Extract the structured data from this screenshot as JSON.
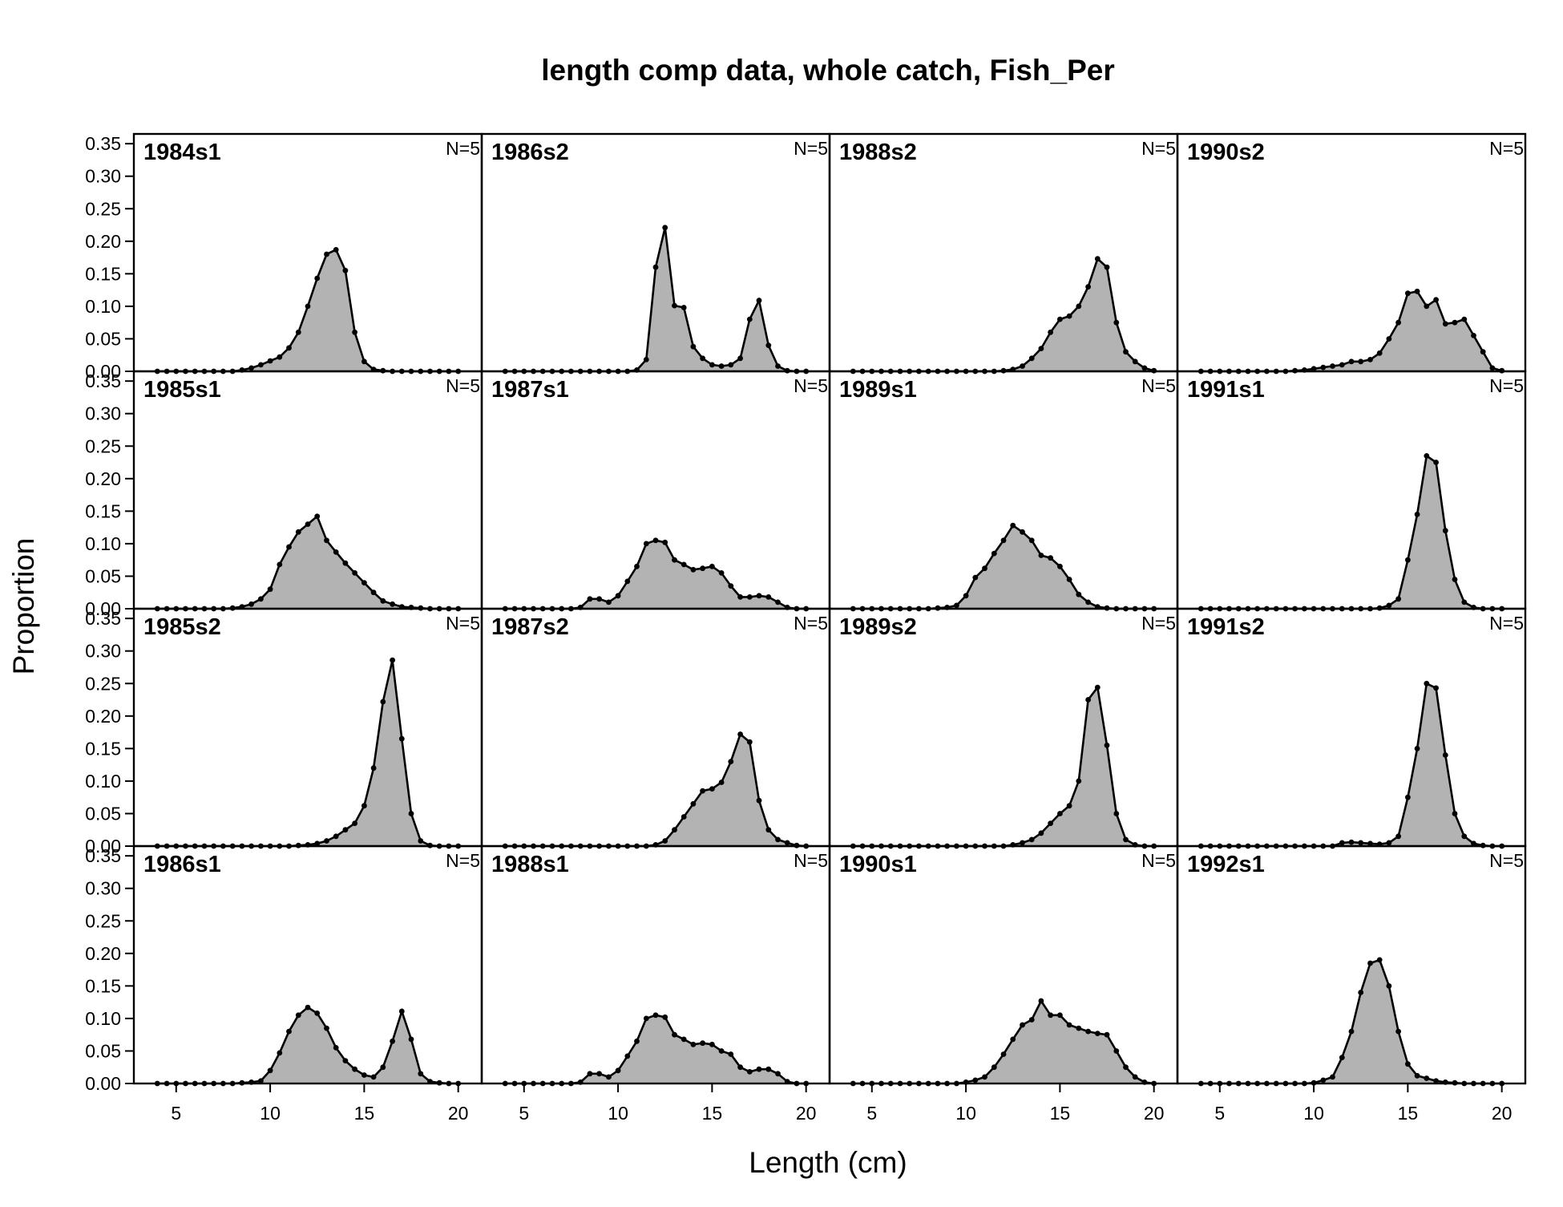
{
  "chart_data": {
    "type": "area",
    "title": "length comp data, whole catch, Fish_Per",
    "xlabel": "Length (cm)",
    "ylabel": "Proportion",
    "xlim": [
      2.75,
      21.25
    ],
    "ylim": [
      0,
      0.365
    ],
    "x_ticks": [
      5,
      10,
      15,
      20
    ],
    "x_tick_labels": [
      "5",
      "10",
      "15",
      "20"
    ],
    "y_ticks": [
      0,
      0.05,
      0.1,
      0.15,
      0.2,
      0.25,
      0.3,
      0.35
    ],
    "y_tick_labels": [
      "0.00",
      "0.05",
      "0.10",
      "0.15",
      "0.20",
      "0.25",
      "0.30",
      "0.35"
    ],
    "layout": "4 x 4 panels, column-major",
    "fill_color": "#b3b3b3",
    "line_color": "#000000",
    "grid": false,
    "x": [
      4,
      4.5,
      5,
      5.5,
      6,
      6.5,
      7,
      7.5,
      8,
      8.5,
      9,
      9.5,
      10,
      10.5,
      11,
      11.5,
      12,
      12.5,
      13,
      13.5,
      14,
      14.5,
      15,
      15.5,
      16,
      16.5,
      17,
      17.5,
      18,
      18.5,
      19,
      19.5,
      20
    ],
    "panels": [
      {
        "label": "1984s1",
        "n_label": "N=5",
        "values": [
          0,
          0,
          0,
          0,
          0,
          0,
          0,
          0,
          0,
          0.002,
          0.005,
          0.01,
          0.016,
          0.022,
          0.036,
          0.06,
          0.1,
          0.143,
          0.18,
          0.187,
          0.155,
          0.06,
          0.015,
          0.003,
          0.001,
          0,
          0,
          0,
          0,
          0,
          0,
          0,
          0
        ]
      },
      {
        "label": "1985s1",
        "n_label": "N=5",
        "values": [
          0,
          0,
          0,
          0,
          0,
          0,
          0,
          0,
          0.001,
          0.003,
          0.007,
          0.015,
          0.03,
          0.068,
          0.095,
          0.118,
          0.13,
          0.142,
          0.105,
          0.087,
          0.07,
          0.055,
          0.04,
          0.025,
          0.012,
          0.007,
          0.003,
          0.002,
          0.001,
          0,
          0,
          0,
          0
        ]
      },
      {
        "label": "1985s2",
        "n_label": "N=5",
        "values": [
          0,
          0,
          0,
          0,
          0,
          0,
          0,
          0,
          0,
          0,
          0,
          0,
          0,
          0,
          0,
          0.001,
          0.002,
          0.004,
          0.008,
          0.015,
          0.025,
          0.035,
          0.062,
          0.12,
          0.222,
          0.286,
          0.165,
          0.05,
          0.008,
          0.001,
          0,
          0,
          0
        ]
      },
      {
        "label": "1986s1",
        "n_label": "N=5",
        "values": [
          0,
          0,
          0,
          0,
          0,
          0,
          0,
          0,
          0,
          0.001,
          0.002,
          0.004,
          0.02,
          0.047,
          0.08,
          0.105,
          0.117,
          0.108,
          0.085,
          0.055,
          0.035,
          0.022,
          0.013,
          0.01,
          0.025,
          0.065,
          0.111,
          0.068,
          0.015,
          0.003,
          0.001,
          0,
          0
        ]
      },
      {
        "label": "1986s2",
        "n_label": "N=5",
        "values": [
          0,
          0,
          0,
          0,
          0,
          0,
          0,
          0,
          0,
          0,
          0,
          0,
          0,
          0,
          0.002,
          0.018,
          0.16,
          0.221,
          0.101,
          0.098,
          0.038,
          0.02,
          0.01,
          0.008,
          0.01,
          0.02,
          0.08,
          0.109,
          0.04,
          0.008,
          0.001,
          0,
          0
        ]
      },
      {
        "label": "1987s1",
        "n_label": "N=5",
        "values": [
          0,
          0,
          0,
          0,
          0,
          0,
          0,
          0,
          0.002,
          0.015,
          0.015,
          0.01,
          0.02,
          0.042,
          0.065,
          0.1,
          0.105,
          0.102,
          0.075,
          0.068,
          0.06,
          0.062,
          0.065,
          0.055,
          0.035,
          0.018,
          0.018,
          0.02,
          0.018,
          0.01,
          0.002,
          0,
          0
        ]
      },
      {
        "label": "1987s2",
        "n_label": "N=5",
        "values": [
          0,
          0,
          0,
          0,
          0,
          0,
          0,
          0,
          0,
          0,
          0,
          0,
          0,
          0,
          0,
          0,
          0.002,
          0.008,
          0.025,
          0.045,
          0.065,
          0.085,
          0.088,
          0.098,
          0.13,
          0.172,
          0.16,
          0.07,
          0.025,
          0.01,
          0.005,
          0.001,
          0
        ]
      },
      {
        "label": "1988s1",
        "n_label": "N=5",
        "values": [
          0,
          0,
          0,
          0,
          0,
          0,
          0,
          0,
          0.002,
          0.015,
          0.015,
          0.01,
          0.02,
          0.042,
          0.065,
          0.1,
          0.105,
          0.102,
          0.075,
          0.068,
          0.06,
          0.062,
          0.06,
          0.05,
          0.045,
          0.025,
          0.018,
          0.022,
          0.022,
          0.015,
          0.003,
          0,
          0
        ]
      },
      {
        "label": "1988s2",
        "n_label": "N=5",
        "values": [
          0,
          0,
          0,
          0,
          0,
          0,
          0,
          0,
          0,
          0,
          0,
          0,
          0,
          0,
          0,
          0,
          0.001,
          0.003,
          0.008,
          0.02,
          0.035,
          0.06,
          0.08,
          0.085,
          0.1,
          0.13,
          0.173,
          0.16,
          0.075,
          0.03,
          0.015,
          0.005,
          0.001
        ]
      },
      {
        "label": "1989s1",
        "n_label": "N=5",
        "values": [
          0,
          0,
          0,
          0,
          0,
          0,
          0,
          0,
          0,
          0.001,
          0.002,
          0.005,
          0.02,
          0.048,
          0.062,
          0.085,
          0.105,
          0.128,
          0.118,
          0.105,
          0.082,
          0.078,
          0.065,
          0.045,
          0.022,
          0.01,
          0.003,
          0.001,
          0,
          0,
          0,
          0,
          0
        ]
      },
      {
        "label": "1989s2",
        "n_label": "N=5",
        "values": [
          0,
          0,
          0,
          0,
          0,
          0,
          0,
          0,
          0,
          0,
          0,
          0,
          0,
          0,
          0,
          0,
          0,
          0.002,
          0.005,
          0.01,
          0.02,
          0.035,
          0.05,
          0.062,
          0.1,
          0.225,
          0.244,
          0.155,
          0.05,
          0.01,
          0.002,
          0,
          0
        ]
      },
      {
        "label": "1990s1",
        "n_label": "N=5",
        "values": [
          0,
          0,
          0,
          0,
          0,
          0,
          0,
          0,
          0,
          0,
          0,
          0,
          0.002,
          0.005,
          0.01,
          0.025,
          0.045,
          0.068,
          0.09,
          0.098,
          0.127,
          0.105,
          0.105,
          0.09,
          0.085,
          0.08,
          0.077,
          0.075,
          0.05,
          0.025,
          0.01,
          0.002,
          0
        ]
      },
      {
        "label": "1990s2",
        "n_label": "N=5",
        "values": [
          0,
          0,
          0,
          0,
          0,
          0,
          0,
          0,
          0,
          0,
          0.001,
          0.002,
          0.004,
          0.006,
          0.008,
          0.01,
          0.015,
          0.015,
          0.018,
          0.028,
          0.05,
          0.075,
          0.12,
          0.123,
          0.1,
          0.11,
          0.073,
          0.075,
          0.08,
          0.055,
          0.03,
          0.005,
          0.001
        ]
      },
      {
        "label": "1991s1",
        "n_label": "N=5",
        "values": [
          0,
          0,
          0,
          0,
          0,
          0,
          0,
          0,
          0,
          0,
          0,
          0,
          0,
          0,
          0,
          0,
          0,
          0,
          0,
          0.001,
          0.005,
          0.015,
          0.075,
          0.145,
          0.235,
          0.225,
          0.12,
          0.045,
          0.01,
          0.002,
          0,
          0,
          0
        ]
      },
      {
        "label": "1991s2",
        "n_label": "N=5",
        "values": [
          0,
          0,
          0,
          0,
          0,
          0,
          0,
          0,
          0,
          0,
          0,
          0,
          0,
          0,
          0,
          0.005,
          0.006,
          0.005,
          0.004,
          0.003,
          0.005,
          0.015,
          0.075,
          0.15,
          0.25,
          0.243,
          0.14,
          0.05,
          0.015,
          0.004,
          0.001,
          0,
          0
        ]
      },
      {
        "label": "1992s1",
        "n_label": "N=5",
        "values": [
          0,
          0,
          0,
          0,
          0,
          0,
          0,
          0,
          0,
          0,
          0,
          0,
          0.001,
          0.005,
          0.01,
          0.04,
          0.08,
          0.14,
          0.185,
          0.19,
          0.15,
          0.08,
          0.03,
          0.012,
          0.008,
          0.004,
          0.002,
          0.001,
          0,
          0,
          0,
          0,
          0
        ]
      }
    ]
  }
}
